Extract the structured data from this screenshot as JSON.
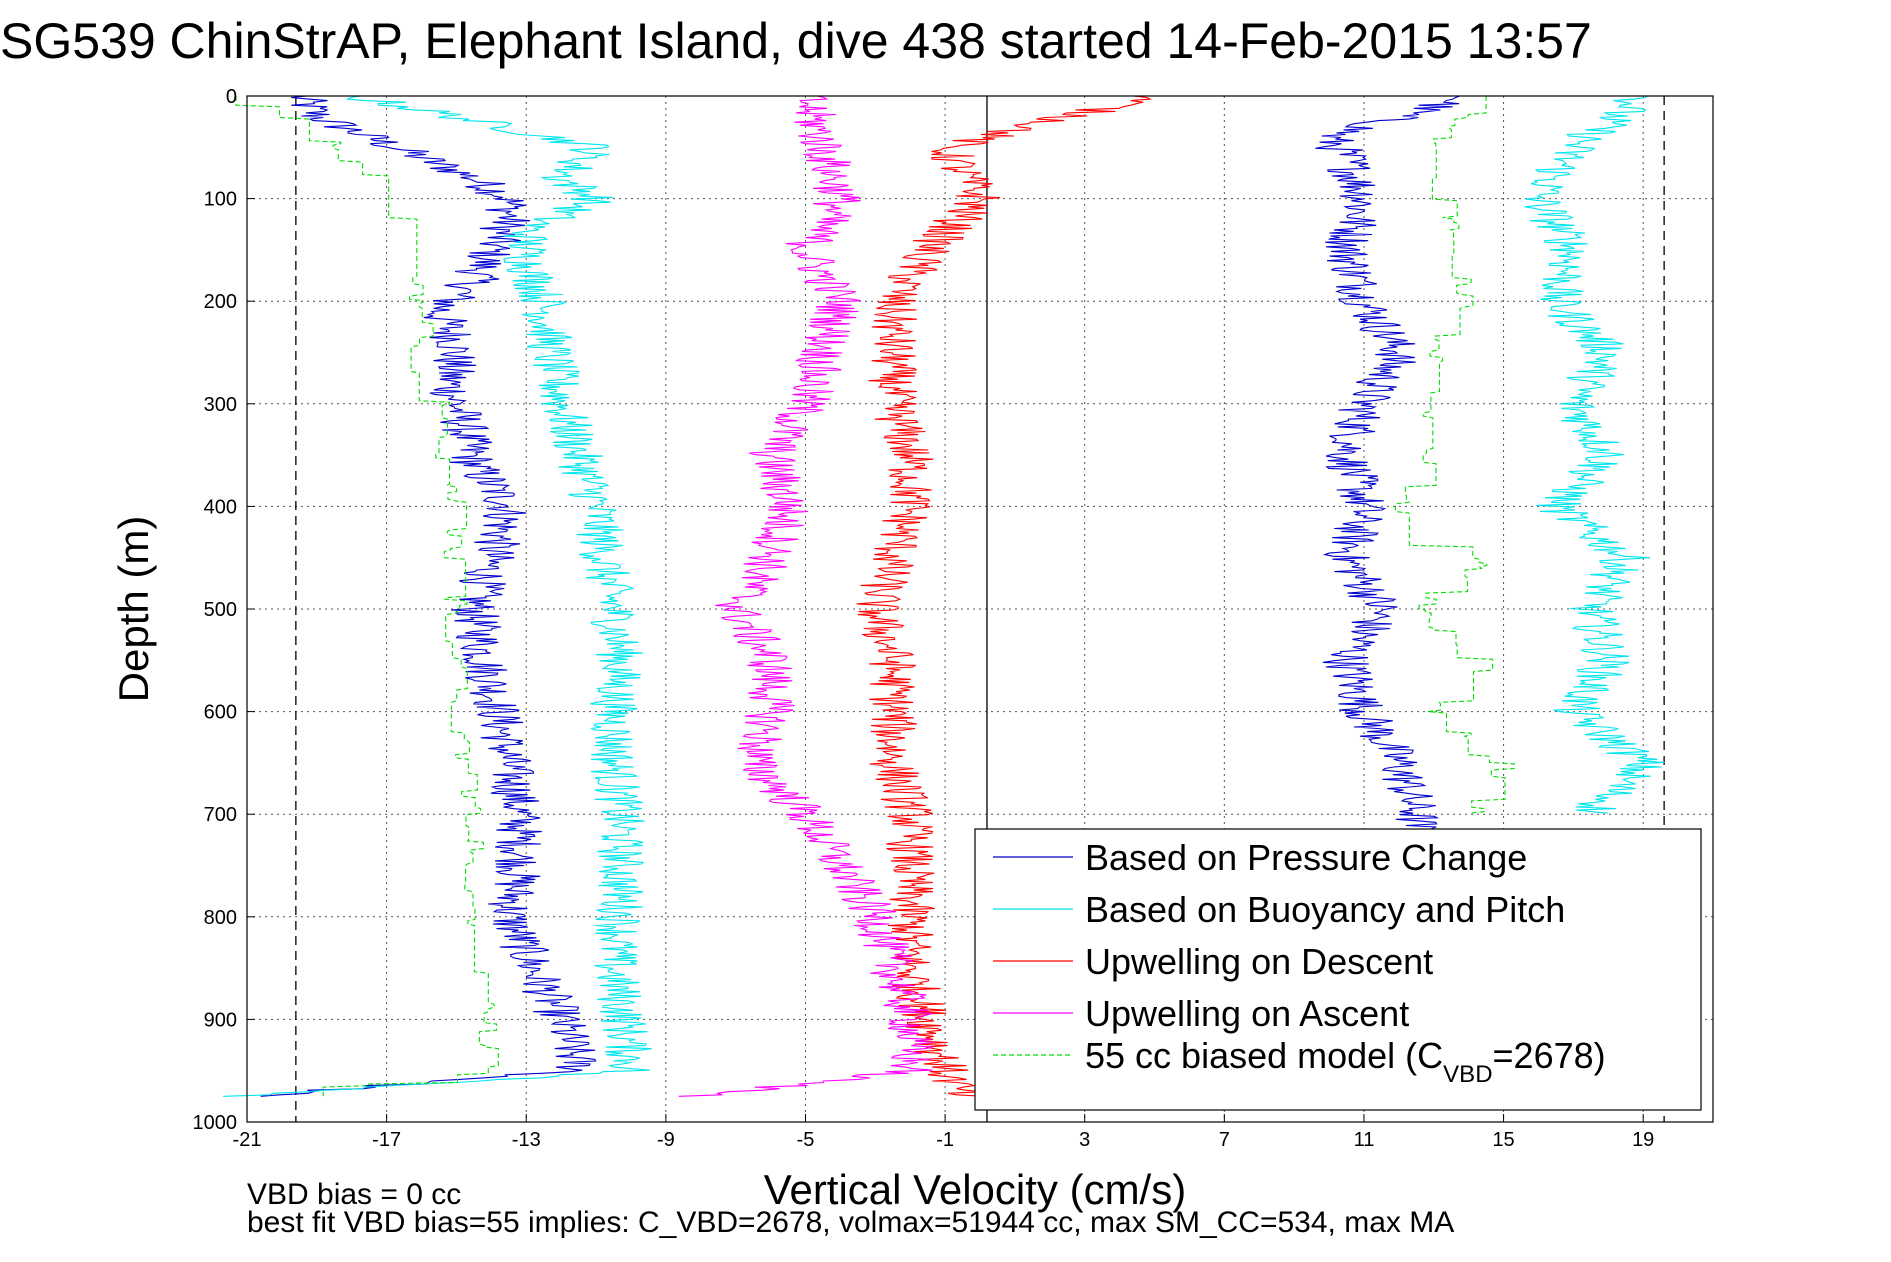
{
  "chart_data": {
    "type": "line",
    "title": "SG539 ChinStrAP, Elephant Island, dive 438 started 14-Feb-2015 13:57",
    "xlabel": "Vertical Velocity (cm/s)",
    "ylabel": "Depth (m)",
    "xlim": [
      -21,
      21
    ],
    "ylim": [
      1000,
      0
    ],
    "y_reversed": true,
    "x_ticks": [
      -21,
      -17,
      -13,
      -9,
      -5,
      -1,
      3,
      7,
      11,
      15,
      19
    ],
    "y_ticks": [
      0,
      100,
      200,
      300,
      400,
      500,
      600,
      700,
      800,
      900,
      1000
    ],
    "grid": true,
    "legend_position": "bottom-right",
    "reference_lines": [
      {
        "x": -19.6,
        "style": "dashed",
        "color": "#000000"
      },
      {
        "x": 0.2,
        "style": "solid",
        "color": "#000000"
      },
      {
        "x": 19.6,
        "style": "dashed",
        "color": "#000000"
      }
    ],
    "series": [
      {
        "name": "Based on Pressure Change",
        "color": "#0000cc",
        "style": "solid",
        "segments": [
          {
            "depth": [
              0,
              20,
              40,
              60,
              80,
              100,
              120,
              150,
              180,
              210,
              240,
              280,
              320,
              360,
              400,
              430,
              470,
              500,
              550,
              600,
              650,
              700,
              750,
              800,
              850,
              900,
              950,
              975
            ],
            "values": [
              -19.5,
              -19,
              -17.5,
              -16,
              -14.5,
              -13.5,
              -13.5,
              -14,
              -14.5,
              -15.5,
              -15,
              -15.2,
              -14.8,
              -14.5,
              -13.5,
              -13.8,
              -14.2,
              -14.5,
              -14.2,
              -13.8,
              -13.5,
              -13.2,
              -13.2,
              -13.5,
              -12.8,
              -12,
              -11.5,
              -21
            ]
          },
          {
            "depth": [
              0,
              20,
              40,
              60,
              100,
              150,
              200,
              250,
              300,
              350,
              400,
              450,
              500,
              550,
              600,
              650,
              700,
              715
            ],
            "values": [
              14,
              12,
              10,
              10.5,
              11,
              10.5,
              11,
              12,
              11,
              10.5,
              11,
              10.5,
              11.5,
              10.5,
              11,
              12,
              12.5,
              12.5
            ]
          }
        ]
      },
      {
        "name": "Based on Buoyancy and Pitch",
        "color": "#00e5ee",
        "style": "solid",
        "segments": [
          {
            "depth": [
              0,
              20,
              50,
              80,
              100,
              130,
              160,
              200,
              250,
              300,
              350,
              400,
              450,
              500,
              550,
              600,
              650,
              700,
              750,
              800,
              850,
              900,
              950,
              975
            ],
            "values": [
              -18,
              -15,
              -11,
              -12,
              -11,
              -13,
              -13,
              -12.5,
              -12.3,
              -12,
              -11.5,
              -11,
              -10.8,
              -10.5,
              -10.3,
              -10.5,
              -10.5,
              -10.3,
              -10.3,
              -10.3,
              -10.5,
              -10.2,
              -10,
              -21
            ]
          },
          {
            "depth": [
              0,
              50,
              100,
              150,
              200,
              250,
              300,
              350,
              400,
              450,
              500,
              550,
              600,
              650,
              700
            ],
            "values": [
              19,
              17,
              16,
              17,
              16.5,
              18,
              17,
              18,
              16.5,
              18.5,
              17.5,
              18,
              17,
              19,
              17.5
            ]
          }
        ]
      },
      {
        "name": "Upwelling on Descent",
        "color": "#ff0000",
        "style": "solid",
        "segments": [
          {
            "depth": [
              0,
              50,
              100,
              150,
              200,
              250,
              300,
              350,
              400,
              450,
              500,
              550,
              600,
              650,
              700,
              750,
              800,
              850,
              900,
              950,
              975
            ],
            "values": [
              5,
              -1,
              0,
              -1.5,
              -2.5,
              -2.5,
              -2.5,
              -2,
              -2,
              -2.5,
              -3,
              -2.5,
              -2.5,
              -2.5,
              -2,
              -2,
              -2,
              -2,
              -1.5,
              -1,
              -0.5
            ]
          }
        ]
      },
      {
        "name": "Upwelling on Ascent",
        "color": "#ff00ff",
        "style": "solid",
        "segments": [
          {
            "depth": [
              0,
              50,
              100,
              150,
              200,
              250,
              300,
              350,
              400,
              450,
              500,
              550,
              600,
              650,
              700,
              750,
              800,
              850,
              900,
              950,
              975
            ],
            "values": [
              -5,
              -4.5,
              -4,
              -5,
              -4,
              -4.5,
              -5,
              -6,
              -5.5,
              -6,
              -7,
              -6,
              -6,
              -6.5,
              -5,
              -4,
              -3,
              -2.5,
              -2,
              -2,
              -8
            ]
          }
        ]
      },
      {
        "name": "55 cc biased model (C",
        "name_subscript": "VBD",
        "name_suffix": "=2678)",
        "color": "#00dd00",
        "style": "dashed",
        "segments": [
          {
            "depth": [
              0,
              30,
              60,
              90,
              120,
              160,
              200,
              250,
              300,
              350,
              400,
              450,
              500,
              550,
              600,
              650,
              700,
              750,
              800,
              850,
              900,
              950,
              975
            ],
            "values": [
              -21,
              -19,
              -18,
              -16,
              -16,
              -16.5,
              -16,
              -16,
              -15.5,
              -15.5,
              -15,
              -15,
              -15,
              -14.8,
              -14.8,
              -14.8,
              -14.5,
              -14.5,
              -14.5,
              -14.2,
              -14.2,
              -14,
              -21
            ]
          },
          {
            "depth": [
              0,
              50,
              100,
              150,
              200,
              250,
              300,
              350,
              400,
              450,
              500,
              550,
              600,
              650,
              700
            ],
            "values": [
              14.5,
              13,
              13.5,
              13.5,
              14,
              13,
              13,
              13,
              12,
              14.5,
              12.5,
              14.5,
              13,
              15,
              14
            ]
          }
        ]
      }
    ],
    "annotations": [
      "VBD bias = 0 cc",
      "best fit VBD bias=55 implies: C_VBD=2678, volmax=51944 cc, max SM_CC=534, max MA"
    ]
  }
}
